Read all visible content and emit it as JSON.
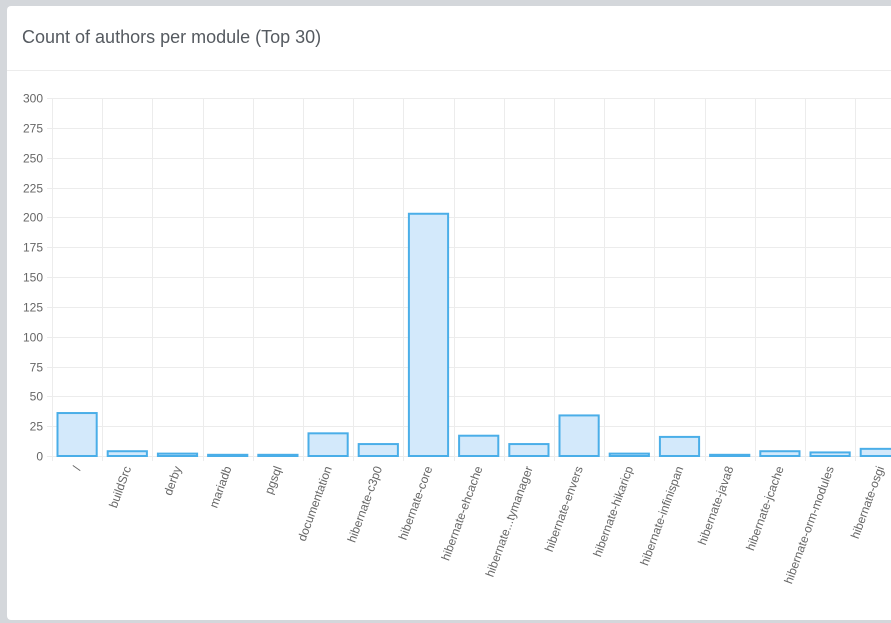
{
  "panel": {
    "title": "Count of authors per module (Top 30)"
  },
  "colors": {
    "bar_fill": "#d3e9fb",
    "bar_stroke": "#4aaee8",
    "grid": "#ececec",
    "tick_text": "#666666"
  },
  "chart_data": {
    "type": "bar",
    "title": "Count of authors per module (Top 30)",
    "xlabel": "",
    "ylabel": "",
    "ylim": [
      0,
      300
    ],
    "yticks": [
      0,
      25,
      50,
      75,
      100,
      125,
      150,
      175,
      200,
      225,
      250,
      275,
      300
    ],
    "grid": true,
    "legend": "none",
    "categories": [
      "/",
      "buildSrc",
      "derby",
      "mariadb",
      "pgsql",
      "documentation",
      "hibernate-c3p0",
      "hibernate-core",
      "hibernate-ehcache",
      "hibernate...tymanager",
      "hibernate-envers",
      "hibernate-hikaricp",
      "hibernate-infinispan",
      "hibernate-java8",
      "hibernate-jcache",
      "hibernate-orm-modules",
      "hibernate-osgi"
    ],
    "values": [
      36,
      4,
      2,
      1,
      1,
      19,
      10,
      203,
      17,
      10,
      34,
      2,
      16,
      1,
      4,
      3,
      6
    ]
  }
}
